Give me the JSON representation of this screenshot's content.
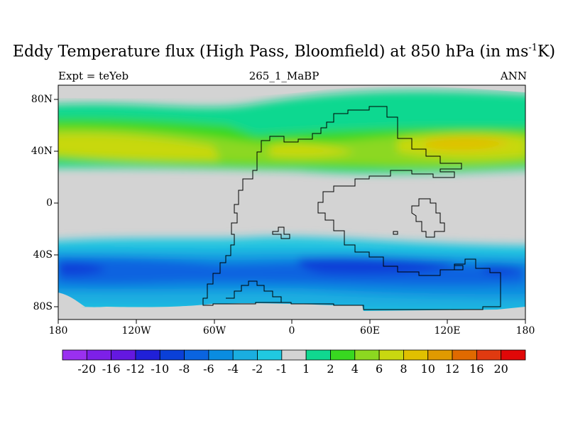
{
  "title": {
    "main": "Eddy Temperature flux (High Pass, Bloomfield) at 850 hPa (in ms",
    "sup": "-1",
    "tail": "K)"
  },
  "subtitle": {
    "left": "Expt = teYeb",
    "center": "265_1_MaBP",
    "right": "ANN"
  },
  "map": {
    "type": "filled-contour-map",
    "projection": "cylindrical-equidistant",
    "lon_range": [
      -180,
      180
    ],
    "lat_range": [
      -90,
      90
    ],
    "x_ticks": [
      "180",
      "120W",
      "60W",
      "0",
      "60E",
      "120E",
      "180"
    ],
    "y_ticks": [
      "80N",
      "40N",
      "0",
      "40S",
      "80S"
    ],
    "background_color": "#d3d3d3",
    "coastline_color": "#000000"
  },
  "colorbar": {
    "labels": [
      "-20",
      "-16",
      "-12",
      "-10",
      "-8",
      "-6",
      "-4",
      "-2",
      "-1",
      "1",
      "2",
      "4",
      "6",
      "8",
      "10",
      "12",
      "16",
      "20"
    ],
    "colors": [
      "#9a30f0",
      "#7d20e8",
      "#6418e0",
      "#2020d8",
      "#0a40d8",
      "#0a64e0",
      "#0a8ce0",
      "#1aaee0",
      "#20c8e0",
      "#d3d3d3",
      "#10d890",
      "#38d820",
      "#8cd820",
      "#c8d810",
      "#e0c000",
      "#e09a00",
      "#e06a00",
      "#e03a10",
      "#e00808"
    ]
  }
}
